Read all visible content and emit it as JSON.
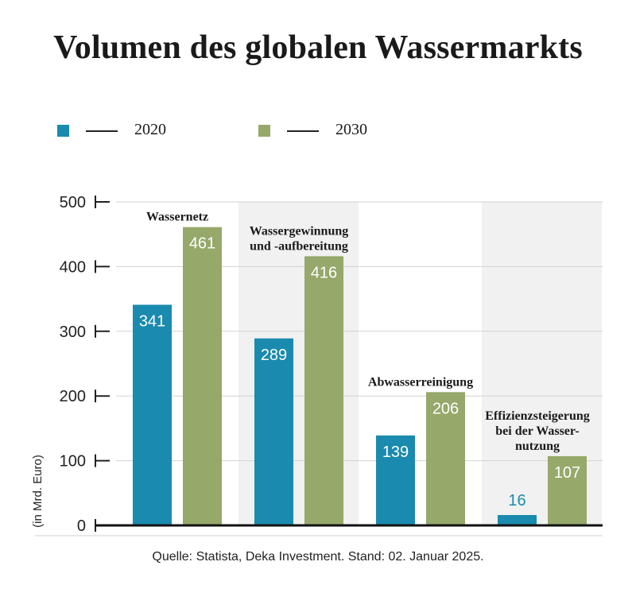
{
  "title": "Volumen des globalen Wassermarkts",
  "source": "Quelle: Statista, Deka Investment. Stand: 02. Januar 2025.",
  "colors": {
    "s2020": "#1a8aae",
    "s2030": "#96a86a",
    "band": "#f1f1f1",
    "grid": "#d2d2d2"
  },
  "chart_data": {
    "type": "bar",
    "ylabel": "(in Mrd. Euro)",
    "ylim": [
      0,
      500
    ],
    "yticks": [
      0,
      100,
      200,
      300,
      400,
      500
    ],
    "grid": true,
    "legend_position": "top-left",
    "categories": [
      [
        "Wassernetz"
      ],
      [
        "Wassergewinnung",
        "und -aufbereitung"
      ],
      [
        "Abwasserreinigung"
      ],
      [
        "Effizienzsteigerung",
        "bei der Wasser-",
        "nutzung"
      ]
    ],
    "series": [
      {
        "name": "2020",
        "values": [
          341,
          289,
          139,
          16
        ]
      },
      {
        "name": "2030",
        "values": [
          461,
          416,
          206,
          107
        ]
      }
    ]
  }
}
